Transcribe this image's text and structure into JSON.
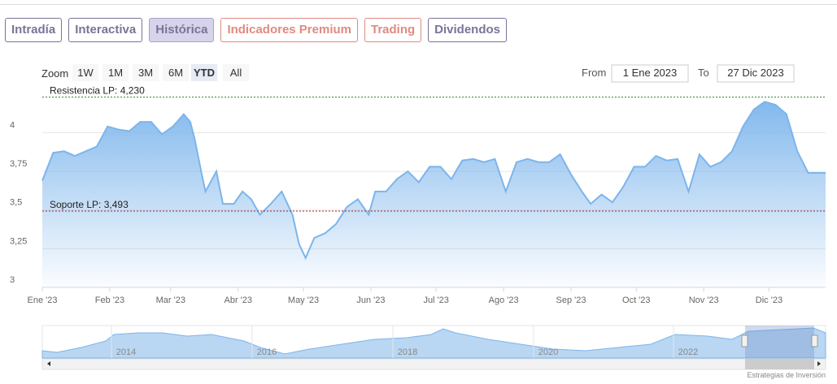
{
  "tabs": {
    "items": [
      {
        "label": "Intradía",
        "color": "#7b7399"
      },
      {
        "label": "Interactiva",
        "color": "#7b7399"
      },
      {
        "label": "Histórica",
        "color": "#7b7399"
      },
      {
        "label": "Indicadores Premium",
        "color": "#e08a80"
      },
      {
        "label": "Trading",
        "color": "#e08a80"
      },
      {
        "label": "Dividendos",
        "color": "#7b7399"
      }
    ],
    "active": 2
  },
  "range_selector": {
    "zoom_label": "Zoom",
    "buttons": [
      "1W",
      "1M",
      "3M",
      "6M",
      "YTD",
      "All"
    ],
    "selected": 4,
    "from_label": "From",
    "from": "1 Ene 2023",
    "to_label": "To",
    "to": "27 Dic 2023"
  },
  "navigator": {
    "labels": [
      "2014",
      "2016",
      "2018",
      "2020",
      "2022"
    ]
  },
  "credits": "Estrategias de Inversión",
  "chart_data": {
    "type": "area",
    "x": [
      0,
      5,
      10,
      15,
      20,
      25,
      30,
      35,
      40,
      45,
      50,
      55,
      60,
      65,
      68,
      70,
      73,
      75,
      80,
      83,
      88,
      92,
      96,
      100,
      105,
      110,
      115,
      118,
      121,
      125,
      130,
      135,
      140,
      145,
      150,
      153,
      158,
      163,
      168,
      173,
      178,
      183,
      188,
      193,
      198,
      203,
      208,
      213,
      218,
      223,
      228,
      233,
      238,
      243,
      248,
      252,
      257,
      262,
      267,
      272,
      277,
      282,
      287,
      292,
      297,
      302,
      307,
      312,
      317,
      322,
      327,
      332,
      337,
      342,
      347,
      352,
      357,
      360
    ],
    "series": [
      {
        "color": "#7cb5ec",
        "values": [
          3.69,
          3.87,
          3.88,
          3.85,
          3.88,
          3.91,
          4.04,
          4.02,
          4.01,
          4.07,
          4.07,
          3.99,
          4.04,
          4.12,
          4.07,
          3.96,
          3.75,
          3.62,
          3.75,
          3.54,
          3.54,
          3.62,
          3.57,
          3.47,
          3.54,
          3.62,
          3.47,
          3.28,
          3.19,
          3.32,
          3.35,
          3.41,
          3.52,
          3.57,
          3.47,
          3.62,
          3.62,
          3.7,
          3.75,
          3.68,
          3.78,
          3.78,
          3.7,
          3.82,
          3.83,
          3.81,
          3.83,
          3.62,
          3.81,
          3.83,
          3.81,
          3.81,
          3.86,
          3.73,
          3.62,
          3.54,
          3.6,
          3.55,
          3.65,
          3.78,
          3.78,
          3.85,
          3.82,
          3.83,
          3.62,
          3.86,
          3.78,
          3.81,
          3.88,
          4.04,
          4.15,
          4.2,
          4.18,
          4.12,
          3.88,
          3.74,
          3.74,
          3.74
        ]
      }
    ],
    "xlim": [
      0,
      360
    ],
    "xticks": [
      {
        "value": 0,
        "label": "Ene '23"
      },
      {
        "value": 31,
        "label": "Feb '23"
      },
      {
        "value": 59,
        "label": "Mar '23"
      },
      {
        "value": 90,
        "label": "Abr '23"
      },
      {
        "value": 120,
        "label": "May '23"
      },
      {
        "value": 151,
        "label": "Jun '23"
      },
      {
        "value": 181,
        "label": "Jul '23"
      },
      {
        "value": 212,
        "label": "Ago '23"
      },
      {
        "value": 243,
        "label": "Sep '23"
      },
      {
        "value": 273,
        "label": "Oct '23"
      },
      {
        "value": 304,
        "label": "Nov '23"
      },
      {
        "value": 334,
        "label": "Dic '23"
      }
    ],
    "ylim": [
      3,
      4.27
    ],
    "yticks": [
      3,
      {
        "value": 3.25,
        "label": "3,25"
      },
      {
        "value": 3.5,
        "label": "3,5"
      },
      {
        "value": 3.75,
        "label": "3,75"
      },
      4
    ],
    "plot_lines": [
      {
        "value": 4.23,
        "label": "Resistencia LP: 4,230",
        "color": "#2e7d32"
      },
      {
        "value": 3.493,
        "label": "Soporte LP: 3,493",
        "color": "#b71c1c"
      }
    ],
    "grid": true
  }
}
